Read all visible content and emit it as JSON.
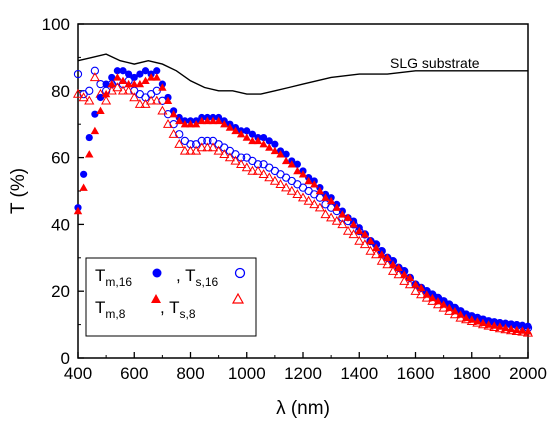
{
  "chart_data": {
    "type": "scatter",
    "title": "",
    "xlabel": "λ (nm)",
    "ylabel": "T (%)",
    "xlim": [
      400,
      2000
    ],
    "ylim": [
      0,
      100
    ],
    "x_ticks": [
      "400",
      "600",
      "800",
      "1000",
      "1200",
      "1400",
      "1600",
      "1800",
      "2000"
    ],
    "y_ticks": [
      "0",
      "20",
      "40",
      "60",
      "80",
      "100"
    ],
    "grid": false,
    "legend_position": "bottom-left",
    "annotation": "SLG substrate",
    "colors": {
      "blue": "#0000ff",
      "red": "#ff0000",
      "black": "#000000"
    },
    "legend_entries": [
      {
        "main": "T",
        "sub": "m,16",
        "marker": "filled-circle",
        "color": "#0000ff"
      },
      {
        "main": ", T",
        "sub": "s,16",
        "marker": "open-circle",
        "color": "#0000ff"
      },
      {
        "main": "T",
        "sub": "m,8",
        "marker": "filled-triangle",
        "color": "#ff0000"
      },
      {
        "main": ", T",
        "sub": "s,8",
        "marker": "open-triangle",
        "color": "#ff0000"
      }
    ],
    "series": [
      {
        "marker": "line",
        "color": "#000000",
        "x": [
          400,
          450,
          500,
          550,
          600,
          650,
          700,
          750,
          800,
          850,
          900,
          950,
          1000,
          1050,
          1100,
          1150,
          1200,
          1300,
          1400,
          1500,
          1600,
          1700,
          1800,
          1900,
          2000
        ],
        "y": [
          89,
          90,
          91,
          89,
          88,
          89,
          88,
          86,
          83,
          81,
          80,
          80,
          79,
          79,
          80,
          81,
          82,
          84,
          85,
          85,
          86,
          86,
          86,
          86,
          86
        ]
      },
      {
        "marker": "filled-circle",
        "color": "#0000ff",
        "x": [
          400,
          420,
          440,
          460,
          480,
          500,
          520,
          540,
          560,
          580,
          600,
          620,
          640,
          660,
          680,
          700,
          720,
          740,
          760,
          780,
          800,
          820,
          840,
          860,
          880,
          900,
          920,
          940,
          960,
          980,
          1000,
          1020,
          1040,
          1060,
          1080,
          1100,
          1120,
          1140,
          1160,
          1180,
          1200,
          1220,
          1240,
          1260,
          1280,
          1300,
          1320,
          1340,
          1360,
          1380,
          1400,
          1420,
          1440,
          1460,
          1480,
          1500,
          1520,
          1540,
          1560,
          1580,
          1600,
          1620,
          1640,
          1660,
          1680,
          1700,
          1720,
          1740,
          1760,
          1780,
          1800,
          1820,
          1840,
          1860,
          1880,
          1900,
          1920,
          1940,
          1960,
          1980,
          2000
        ],
        "y": [
          45,
          55,
          66,
          73,
          78,
          82,
          84,
          86,
          86,
          85,
          84,
          85,
          86,
          85,
          86,
          82,
          78,
          74,
          72,
          71,
          71,
          71,
          72,
          72,
          72,
          72,
          71,
          70,
          69,
          68,
          68,
          67,
          66,
          66,
          65,
          64,
          62,
          61,
          59,
          58,
          56,
          54,
          53,
          51,
          49,
          48,
          46,
          44,
          42,
          41,
          39,
          37,
          35,
          34,
          32,
          30,
          29,
          27,
          26,
          24,
          22,
          21,
          20,
          19,
          18,
          17,
          16,
          15,
          14,
          13,
          12.5,
          12,
          11.5,
          11,
          10.8,
          10.6,
          10.4,
          10.2,
          10,
          9.8,
          9.5
        ]
      },
      {
        "marker": "open-circle",
        "color": "#0000ff",
        "x": [
          400,
          420,
          440,
          460,
          480,
          500,
          520,
          540,
          560,
          580,
          600,
          620,
          640,
          660,
          680,
          700,
          720,
          740,
          760,
          780,
          800,
          820,
          840,
          860,
          880,
          900,
          920,
          940,
          960,
          980,
          1000,
          1020,
          1040,
          1060,
          1080,
          1100,
          1120,
          1140,
          1160,
          1180,
          1200,
          1220,
          1240,
          1260,
          1280,
          1300,
          1320,
          1340,
          1360,
          1380,
          1400,
          1420,
          1440,
          1460,
          1480,
          1500,
          1520,
          1540,
          1560,
          1580,
          1600,
          1620,
          1640,
          1660,
          1680,
          1700,
          1720,
          1740,
          1760,
          1780,
          1800,
          1820,
          1840,
          1860,
          1880,
          1900,
          1920,
          1940,
          1960,
          1980,
          2000
        ],
        "y": [
          85,
          79,
          80,
          86,
          82,
          80,
          82,
          83,
          82,
          83,
          80,
          79,
          78,
          79,
          80,
          77,
          73,
          70,
          67,
          65,
          64,
          64,
          65,
          65,
          65,
          64,
          63,
          62,
          61,
          60,
          60,
          59,
          58,
          58,
          57,
          56,
          55,
          54,
          53,
          52,
          51,
          50,
          49,
          48,
          46,
          45,
          44,
          42,
          41,
          40,
          38,
          37,
          35,
          34,
          32,
          30,
          29,
          27,
          26,
          24,
          22,
          21,
          20,
          19,
          18,
          17,
          16,
          15,
          14,
          13,
          12.5,
          12,
          11.5,
          11,
          10.7,
          10.4,
          10.2,
          10,
          9.8,
          9.5,
          9
        ]
      },
      {
        "marker": "filled-triangle",
        "color": "#ff0000",
        "x": [
          400,
          420,
          440,
          460,
          480,
          500,
          520,
          540,
          560,
          580,
          600,
          620,
          640,
          660,
          680,
          700,
          720,
          740,
          760,
          780,
          800,
          820,
          840,
          860,
          880,
          900,
          920,
          940,
          960,
          980,
          1000,
          1020,
          1040,
          1060,
          1080,
          1100,
          1120,
          1140,
          1160,
          1180,
          1200,
          1220,
          1240,
          1260,
          1280,
          1300,
          1320,
          1340,
          1360,
          1380,
          1400,
          1420,
          1440,
          1460,
          1480,
          1500,
          1520,
          1540,
          1560,
          1580,
          1600,
          1620,
          1640,
          1660,
          1680,
          1700,
          1720,
          1740,
          1760,
          1780,
          1800,
          1820,
          1840,
          1860,
          1880,
          1900,
          1920,
          1940,
          1960,
          1980,
          2000
        ],
        "y": [
          44,
          51,
          61,
          68,
          74,
          79,
          82,
          84,
          83,
          82,
          82,
          82,
          83,
          84,
          84,
          81,
          77,
          73,
          71,
          70,
          70,
          70,
          71,
          71,
          71,
          71,
          70,
          69,
          68,
          67,
          66,
          65,
          65,
          64,
          63,
          62,
          61,
          59,
          58,
          56,
          55,
          53,
          52,
          50,
          48,
          47,
          45,
          43,
          42,
          40,
          38,
          37,
          35,
          33,
          31,
          30,
          28,
          27,
          25,
          24,
          22,
          21,
          19,
          18,
          17,
          16,
          15,
          14,
          13,
          12,
          11.5,
          11,
          10.5,
          10,
          9.7,
          9.4,
          9,
          8.7,
          8.4,
          8.2,
          8
        ]
      },
      {
        "marker": "open-triangle",
        "color": "#ff0000",
        "x": [
          400,
          420,
          440,
          460,
          480,
          500,
          520,
          540,
          560,
          580,
          600,
          620,
          640,
          660,
          680,
          700,
          720,
          740,
          760,
          780,
          800,
          820,
          840,
          860,
          880,
          900,
          920,
          940,
          960,
          980,
          1000,
          1020,
          1040,
          1060,
          1080,
          1100,
          1120,
          1140,
          1160,
          1180,
          1200,
          1220,
          1240,
          1260,
          1280,
          1300,
          1320,
          1340,
          1360,
          1380,
          1400,
          1420,
          1440,
          1460,
          1480,
          1500,
          1520,
          1540,
          1560,
          1580,
          1600,
          1620,
          1640,
          1660,
          1680,
          1700,
          1720,
          1740,
          1760,
          1780,
          1800,
          1820,
          1840,
          1860,
          1880,
          1900,
          1920,
          1940,
          1960,
          1980,
          2000
        ],
        "y": [
          79,
          78,
          77,
          84,
          79,
          77,
          80,
          81,
          80,
          80,
          78,
          76,
          76,
          77,
          77,
          74,
          70,
          67,
          64,
          62,
          62,
          62,
          63,
          63,
          63,
          62,
          61,
          60,
          59,
          58,
          57,
          56,
          56,
          55,
          54,
          53,
          52,
          51,
          50,
          49,
          48,
          47,
          46,
          45,
          43,
          42,
          41,
          40,
          38,
          37,
          35,
          34,
          32,
          31,
          29,
          28,
          26,
          25,
          23,
          22,
          20,
          19,
          18,
          17,
          16,
          15,
          14,
          13,
          12,
          11.5,
          11,
          10.5,
          10,
          9.6,
          9.2,
          8.8,
          8.5,
          8.2,
          8,
          7.8,
          7.5
        ]
      }
    ]
  }
}
